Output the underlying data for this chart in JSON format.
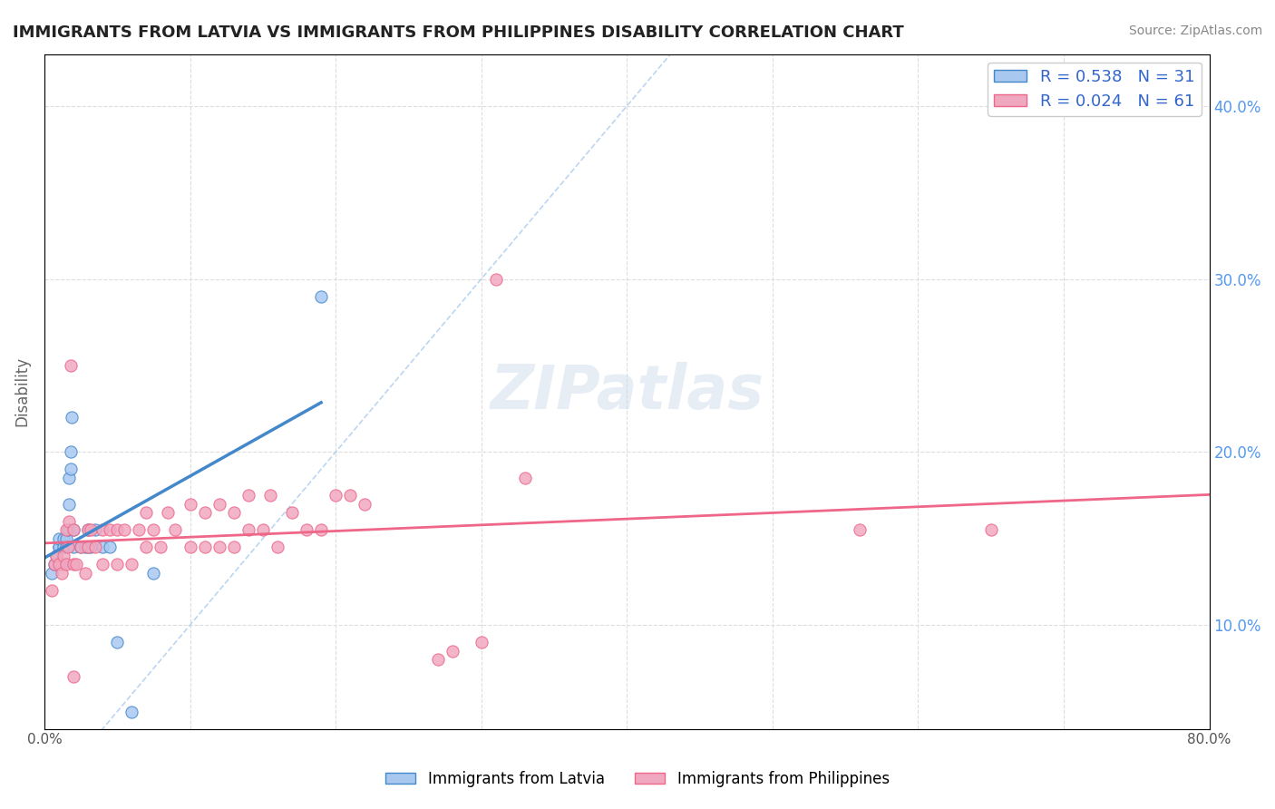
{
  "title": "IMMIGRANTS FROM LATVIA VS IMMIGRANTS FROM PHILIPPINES DISABILITY CORRELATION CHART",
  "source_text": "Source: ZipAtlas.com",
  "ylabel": "Disability",
  "xlim": [
    0.0,
    0.8
  ],
  "ylim": [
    0.04,
    0.43
  ],
  "x_ticks": [
    0.0,
    0.1,
    0.2,
    0.3,
    0.4,
    0.5,
    0.6,
    0.7,
    0.8
  ],
  "x_tick_labels": [
    "0.0%",
    "",
    "",
    "",
    "",
    "",
    "",
    "",
    "80.0%"
  ],
  "y_ticks": [
    0.1,
    0.2,
    0.3,
    0.4
  ],
  "y_tick_labels": [
    "10.0%",
    "20.0%",
    "30.0%",
    "40.0%"
  ],
  "legend_R1": "0.538",
  "legend_N1": "31",
  "legend_R2": "0.024",
  "legend_N2": "61",
  "color_latvia": "#a8c8f0",
  "color_philippines": "#f0a8c0",
  "color_latvia_line": "#4488cc",
  "color_philippines_line": "#ee6688",
  "color_diag_line": "#aaccee",
  "latvia_x": [
    0.005,
    0.007,
    0.008,
    0.01,
    0.01,
    0.01,
    0.012,
    0.013,
    0.013,
    0.015,
    0.015,
    0.016,
    0.017,
    0.017,
    0.018,
    0.018,
    0.019,
    0.02,
    0.02,
    0.025,
    0.028,
    0.03,
    0.03,
    0.032,
    0.035,
    0.04,
    0.045,
    0.05,
    0.06,
    0.075,
    0.19
  ],
  "latvia_y": [
    0.13,
    0.135,
    0.14,
    0.145,
    0.145,
    0.15,
    0.135,
    0.145,
    0.15,
    0.145,
    0.15,
    0.155,
    0.17,
    0.185,
    0.19,
    0.2,
    0.22,
    0.145,
    0.155,
    0.145,
    0.145,
    0.145,
    0.155,
    0.145,
    0.155,
    0.145,
    0.145,
    0.09,
    0.05,
    0.13,
    0.29
  ],
  "philippines_x": [
    0.005,
    0.007,
    0.008,
    0.01,
    0.012,
    0.013,
    0.015,
    0.015,
    0.016,
    0.017,
    0.018,
    0.02,
    0.02,
    0.02,
    0.022,
    0.025,
    0.028,
    0.03,
    0.03,
    0.032,
    0.035,
    0.04,
    0.04,
    0.045,
    0.05,
    0.05,
    0.055,
    0.06,
    0.065,
    0.07,
    0.07,
    0.075,
    0.08,
    0.085,
    0.09,
    0.1,
    0.1,
    0.11,
    0.11,
    0.12,
    0.12,
    0.13,
    0.13,
    0.14,
    0.14,
    0.15,
    0.155,
    0.16,
    0.17,
    0.18,
    0.19,
    0.2,
    0.21,
    0.22,
    0.27,
    0.28,
    0.3,
    0.31,
    0.33,
    0.56,
    0.65
  ],
  "philippines_y": [
    0.12,
    0.135,
    0.14,
    0.135,
    0.13,
    0.14,
    0.135,
    0.155,
    0.145,
    0.16,
    0.25,
    0.07,
    0.135,
    0.155,
    0.135,
    0.145,
    0.13,
    0.145,
    0.155,
    0.155,
    0.145,
    0.135,
    0.155,
    0.155,
    0.135,
    0.155,
    0.155,
    0.135,
    0.155,
    0.145,
    0.165,
    0.155,
    0.145,
    0.165,
    0.155,
    0.145,
    0.17,
    0.145,
    0.165,
    0.145,
    0.17,
    0.145,
    0.165,
    0.155,
    0.175,
    0.155,
    0.175,
    0.145,
    0.165,
    0.155,
    0.155,
    0.175,
    0.175,
    0.17,
    0.08,
    0.085,
    0.09,
    0.3,
    0.185,
    0.155,
    0.155
  ],
  "watermark_text": "ZIPatlas",
  "bg_color": "#ffffff",
  "grid_color": "#dddddd"
}
